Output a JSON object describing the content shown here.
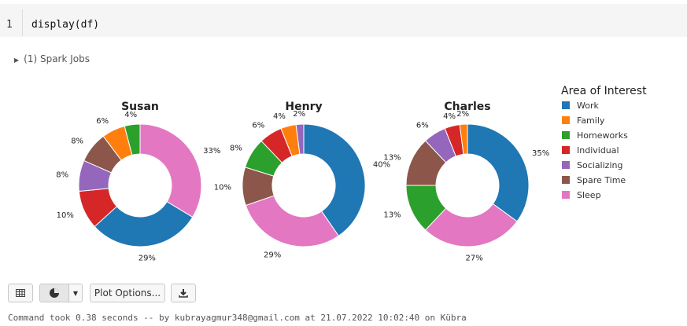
{
  "cell": {
    "line_number": "1",
    "code": "display(df)"
  },
  "spark_jobs": {
    "label": "(1) Spark Jobs"
  },
  "colors": {
    "Work": "#1f77b4",
    "Family": "#ff7f0e",
    "Homeworks": "#2ca02c",
    "Individual": "#d62728",
    "Socializing": "#9467bd",
    "Spare Time": "#8c564b",
    "Sleep": "#e377c2"
  },
  "chart_data": [
    {
      "type": "pie",
      "title": "Susan",
      "categories": [
        "Work",
        "Family",
        "Homeworks",
        "Individual",
        "Socializing",
        "Spare Time",
        "Sleep"
      ],
      "values": [
        29,
        6,
        4,
        10,
        8,
        8,
        33
      ],
      "order": [
        "Sleep",
        "Work",
        "Individual",
        "Socializing",
        "Spare Time",
        "Family",
        "Homeworks"
      ],
      "labels": [
        "33%",
        "29%",
        "10%",
        "8%",
        "8%",
        "6%",
        "4%"
      ]
    },
    {
      "type": "pie",
      "title": "Henry",
      "categories": [
        "Work",
        "Family",
        "Homeworks",
        "Individual",
        "Socializing",
        "Spare Time",
        "Sleep"
      ],
      "values": [
        40,
        4,
        8,
        6,
        2,
        10,
        29
      ],
      "order": [
        "Work",
        "Sleep",
        "Spare Time",
        "Homeworks",
        "Individual",
        "Family",
        "Socializing"
      ],
      "labels": [
        "40%",
        "29%",
        "10%",
        "8%",
        "6%",
        "4%",
        "2%"
      ]
    },
    {
      "type": "pie",
      "title": "Charles",
      "categories": [
        "Work",
        "Family",
        "Homeworks",
        "Individual",
        "Socializing",
        "Spare Time",
        "Sleep"
      ],
      "values": [
        35,
        2,
        13,
        4,
        6,
        13,
        27
      ],
      "order": [
        "Work",
        "Sleep",
        "Homeworks",
        "Spare Time",
        "Socializing",
        "Individual",
        "Family"
      ],
      "labels": [
        "35%",
        "27%",
        "13%",
        "13%",
        "6%",
        "4%",
        "2%"
      ]
    }
  ],
  "legend": {
    "title": "Area of Interest",
    "items": [
      "Work",
      "Family",
      "Homeworks",
      "Individual",
      "Socializing",
      "Spare Time",
      "Sleep"
    ]
  },
  "toolbar": {
    "table_icon": "table-icon",
    "chart_icon": "pie-chart-icon",
    "dropdown_icon": "caret-down-icon",
    "plot_options_label": "Plot Options...",
    "download_icon": "download-icon"
  },
  "status": {
    "text": "Command took 0.38 seconds -- by kubrayagmur348@gmail.com at 21.07.2022 10:02:40 on Kübra"
  }
}
